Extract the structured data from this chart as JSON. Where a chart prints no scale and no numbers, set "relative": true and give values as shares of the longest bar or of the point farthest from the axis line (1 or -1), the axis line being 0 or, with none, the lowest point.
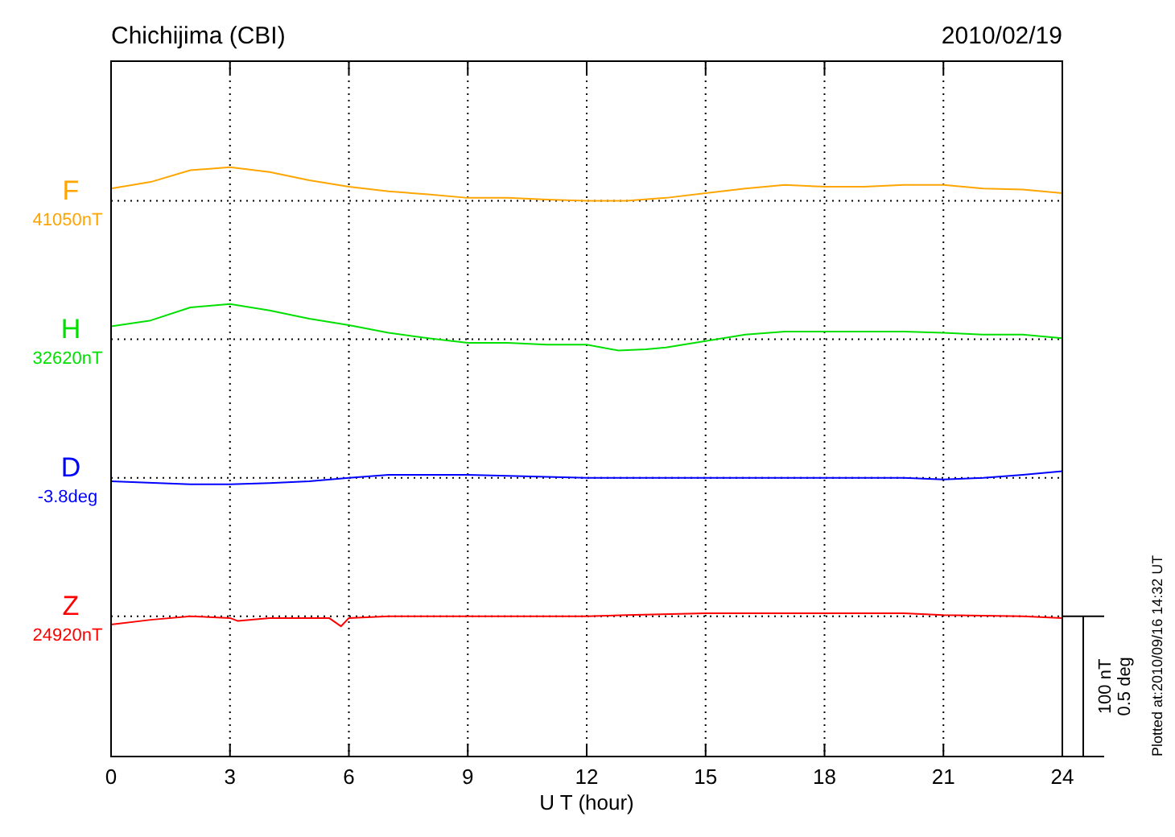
{
  "chart_data": {
    "type": "line",
    "title": "Chichijima (CBI)",
    "subtitle": "2010/02/19",
    "xlabel": "U T (hour)",
    "relative": true,
    "grid": "x",
    "xlim": [
      0,
      24
    ],
    "xticks": [
      0,
      3,
      6,
      9,
      12,
      15,
      18,
      21,
      24
    ],
    "line_style": "solid",
    "series": [
      {
        "name": "F",
        "color": "#ffa500",
        "x": [
          0,
          1,
          2,
          3,
          4,
          5,
          6,
          7,
          8,
          9,
          10,
          11,
          12,
          13,
          14,
          15,
          16,
          17,
          18,
          19,
          20,
          21,
          22,
          23,
          24
        ],
        "values": [
          0.964,
          0.975,
          0.995,
          1,
          0.992,
          0.978,
          0.967,
          0.959,
          0.954,
          0.948,
          0.948,
          0.945,
          0.943,
          0.943,
          0.948,
          0.956,
          0.964,
          0.97,
          0.967,
          0.967,
          0.97,
          0.97,
          0.964,
          0.962,
          0.956
        ]
      },
      {
        "name": "H",
        "color": "#00e000",
        "x": [
          0,
          1,
          2,
          3,
          4,
          5,
          6,
          7,
          8,
          9,
          10,
          11,
          12,
          12.8,
          13.5,
          14,
          15,
          16,
          17,
          18,
          19,
          20,
          21,
          22,
          23,
          24
        ],
        "values": [
          0.73,
          0.74,
          0.762,
          0.768,
          0.757,
          0.743,
          0.732,
          0.719,
          0.71,
          0.702,
          0.702,
          0.699,
          0.699,
          0.689,
          0.691,
          0.694,
          0.705,
          0.716,
          0.721,
          0.721,
          0.721,
          0.721,
          0.719,
          0.716,
          0.716,
          0.71
        ]
      },
      {
        "name": "D",
        "color": "#0000ff",
        "x": [
          0,
          2,
          3,
          4,
          5,
          6,
          7,
          9,
          12,
          15,
          18,
          20,
          21,
          22,
          23,
          24
        ],
        "values": [
          0.467,
          0.462,
          0.462,
          0.464,
          0.467,
          0.473,
          0.478,
          0.478,
          0.473,
          0.473,
          0.473,
          0.473,
          0.47,
          0.473,
          0.478,
          0.484
        ]
      },
      {
        "name": "Z",
        "color": "#ff0000",
        "x": [
          0,
          1,
          2,
          3,
          3.2,
          4,
          5.5,
          5.8,
          6,
          7,
          9,
          12,
          13,
          15,
          17,
          20,
          21,
          23,
          24
        ],
        "values": [
          0.224,
          0.232,
          0.238,
          0.235,
          0.23,
          0.235,
          0.235,
          0.221,
          0.235,
          0.238,
          0.238,
          0.238,
          0.24,
          0.243,
          0.243,
          0.243,
          0.24,
          0.238,
          0.235
        ]
      }
    ],
    "ref_lines": [
      {
        "axis": "y",
        "value": 0.943,
        "label": "41050nT",
        "color": "#000000",
        "line_style": "dotted"
      },
      {
        "axis": "y",
        "value": 0.708,
        "label": "32620nT",
        "color": "#000000",
        "line_style": "dotted"
      },
      {
        "axis": "y",
        "value": 0.473,
        "label": "-3.8deg",
        "color": "#000000",
        "line_style": "dotted"
      },
      {
        "axis": "y",
        "value": 0.238,
        "label": "24920nT",
        "color": "#000000",
        "line_style": "dotted"
      }
    ],
    "annotations": [
      "100 nT",
      "0.5 deg",
      "Plotted at:2010/09/16 14:32 UT"
    ]
  }
}
